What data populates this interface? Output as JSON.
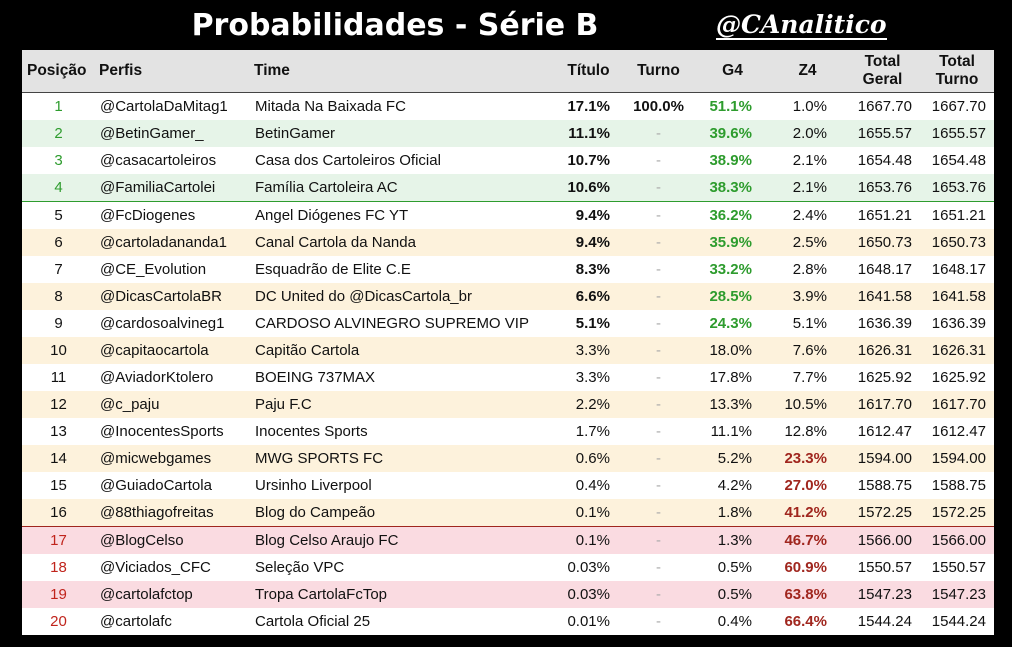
{
  "header": {
    "title": "Probabilidades - Série B",
    "brand": "@CAnalitico"
  },
  "table": {
    "columns": [
      "Posição",
      "Perfis",
      "Time",
      "Título",
      "Turno",
      "G4",
      "Z4",
      "Total Geral",
      "Total Turno"
    ],
    "rows": [
      [
        "1",
        "@CartolaDaMitag1",
        "Mitada Na Baixada FC",
        "17.1%",
        "100.0%",
        "51.1%",
        "1.0%",
        "1667.70",
        "1667.70"
      ],
      [
        "2",
        "@BetinGamer_",
        "BetinGamer",
        "11.1%",
        "-",
        "39.6%",
        "2.0%",
        "1655.57",
        "1655.57"
      ],
      [
        "3",
        "@casacartoleiros",
        "Casa dos Cartoleiros Oficial",
        "10.7%",
        "-",
        "38.9%",
        "2.1%",
        "1654.48",
        "1654.48"
      ],
      [
        "4",
        "@FamiliaCartolei",
        "Família Cartoleira AC",
        "10.6%",
        "-",
        "38.3%",
        "2.1%",
        "1653.76",
        "1653.76"
      ],
      [
        "5",
        "@FcDiogenes",
        "Angel Diógenes FC YT",
        "9.4%",
        "-",
        "36.2%",
        "2.4%",
        "1651.21",
        "1651.21"
      ],
      [
        "6",
        "@cartoladananda1",
        "Canal Cartola da Nanda",
        "9.4%",
        "-",
        "35.9%",
        "2.5%",
        "1650.73",
        "1650.73"
      ],
      [
        "7",
        "@CE_Evolution",
        "Esquadrão de Elite C.E",
        "8.3%",
        "-",
        "33.2%",
        "2.8%",
        "1648.17",
        "1648.17"
      ],
      [
        "8",
        "@DicasCartolaBR",
        "DC United do @DicasCartola_br",
        "6.6%",
        "-",
        "28.5%",
        "3.9%",
        "1641.58",
        "1641.58"
      ],
      [
        "9",
        "@cardosoalvineg1",
        "CARDOSO ALVINEGRO SUPREMO VIP",
        "5.1%",
        "-",
        "24.3%",
        "5.1%",
        "1636.39",
        "1636.39"
      ],
      [
        "10",
        "@capitaocartola",
        "Capitão Cartola",
        "3.3%",
        "-",
        "18.0%",
        "7.6%",
        "1626.31",
        "1626.31"
      ],
      [
        "11",
        "@AviadorKtolero",
        "BOEING 737MAX",
        "3.3%",
        "-",
        "17.8%",
        "7.7%",
        "1625.92",
        "1625.92"
      ],
      [
        "12",
        "@c_paju",
        "Paju F.C",
        "2.2%",
        "-",
        "13.3%",
        "10.5%",
        "1617.70",
        "1617.70"
      ],
      [
        "13",
        "@InocentesSports",
        "Inocentes Sports",
        "1.7%",
        "-",
        "11.1%",
        "12.8%",
        "1612.47",
        "1612.47"
      ],
      [
        "14",
        "@micwebgames",
        "MWG SPORTS FC",
        "0.6%",
        "-",
        "5.2%",
        "23.3%",
        "1594.00",
        "1594.00"
      ],
      [
        "15",
        "@GuiadoCartola",
        "Ursinho Liverpool",
        "0.4%",
        "-",
        "4.2%",
        "27.0%",
        "1588.75",
        "1588.75"
      ],
      [
        "16",
        "@88thiagofreitas",
        "Blog do Campeão",
        "0.1%",
        "-",
        "1.8%",
        "41.2%",
        "1572.25",
        "1572.25"
      ],
      [
        "17",
        "@BlogCelso",
        "Blog Celso Araujo FC",
        "0.1%",
        "-",
        "1.3%",
        "46.7%",
        "1566.00",
        "1566.00"
      ],
      [
        "18",
        "@Viciados_CFC",
        "Seleção VPC",
        "0.03%",
        "-",
        "0.5%",
        "60.9%",
        "1550.57",
        "1550.57"
      ],
      [
        "19",
        "@cartolafctop",
        "Tropa CartolaFcTop",
        "0.03%",
        "-",
        "0.5%",
        "63.8%",
        "1547.23",
        "1547.23"
      ],
      [
        "20",
        "@cartolafc",
        "Cartola Oficial 25",
        "0.01%",
        "-",
        "0.4%",
        "66.4%",
        "1544.24",
        "1544.24"
      ]
    ]
  }
}
